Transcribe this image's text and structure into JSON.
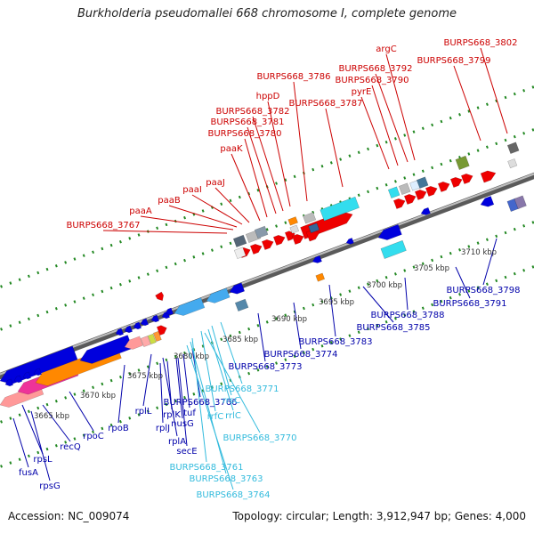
{
  "title": "Burkholderia pseudomallei 668 chromosome I, complete genome",
  "footer": {
    "accession": "Accession: NC_009074",
    "summary": "Topology: circular; Length: 3,912,947 bp; Genes: 4,000"
  },
  "colors": {
    "red_label": "#cc0000",
    "blue_label": "#0000aa",
    "cyan_label": "#33bbdd",
    "backbone": "#999999",
    "tick": "#228822",
    "feature_red": "#ee0000",
    "feature_blue": "#0000dd",
    "feature_cyan": "#33ddee",
    "feature_sky": "#44aaee",
    "feature_orange": "#ff8800",
    "feature_pink": "#ee3399"
  },
  "kbp_ticks": [
    {
      "label": "3665 kbp"
    },
    {
      "label": "3670 kbp"
    },
    {
      "label": "3675 kbp"
    },
    {
      "label": "3680 kbp"
    },
    {
      "label": "3685 kbp"
    },
    {
      "label": "3690 kbp"
    },
    {
      "label": "3695 kbp"
    },
    {
      "label": "3700 kbp"
    },
    {
      "label": "3705 kbp"
    },
    {
      "label": "3710 kbp"
    }
  ],
  "labels_top": [
    {
      "label": "argC"
    },
    {
      "label": "BURPS668_3802"
    },
    {
      "label": "BURPS668_3792"
    },
    {
      "label": "BURPS668_3799"
    },
    {
      "label": "BURPS668_3790"
    },
    {
      "label": "BURPS668_3786"
    },
    {
      "label": "pyrE"
    },
    {
      "label": "hppD"
    },
    {
      "label": "BURPS668_3787"
    },
    {
      "label": "BURPS668_3782"
    },
    {
      "label": "BURPS668_3781"
    },
    {
      "label": "BURPS668_3780"
    },
    {
      "label": "paaK"
    },
    {
      "label": "paaJ"
    },
    {
      "label": "paaI"
    },
    {
      "label": "paaB"
    },
    {
      "label": "paaA"
    },
    {
      "label": "BURPS668_3767"
    }
  ],
  "labels_bottom_blue": [
    {
      "label": "BURPS668_3798"
    },
    {
      "label": "BURPS668_3791"
    },
    {
      "label": "BURPS668_3788"
    },
    {
      "label": "BURPS668_3785"
    },
    {
      "label": "BURPS668_3783"
    },
    {
      "label": "BURPS668_3774"
    },
    {
      "label": "BURPS668_3773"
    },
    {
      "label": "BURPS668_3766"
    },
    {
      "label": "tuf"
    },
    {
      "label": "nusG"
    },
    {
      "label": "rplK"
    },
    {
      "label": "rplJ"
    },
    {
      "label": "rplA"
    },
    {
      "label": "secE"
    },
    {
      "label": "rplL"
    },
    {
      "label": "rpoB"
    },
    {
      "label": "rpoC"
    },
    {
      "label": "recQ"
    },
    {
      "label": "rpsL"
    },
    {
      "label": "fusA"
    },
    {
      "label": "rpsG"
    }
  ],
  "labels_bottom_cyan": [
    {
      "label": "BURPS668_3771"
    },
    {
      "label": "rrsC"
    },
    {
      "label": "rrfC"
    },
    {
      "label": "rrlC"
    },
    {
      "label": "BURPS668_3770"
    },
    {
      "label": "BURPS668_3761"
    },
    {
      "label": "BURPS668_3763"
    },
    {
      "label": "BURPS668_3764"
    }
  ]
}
